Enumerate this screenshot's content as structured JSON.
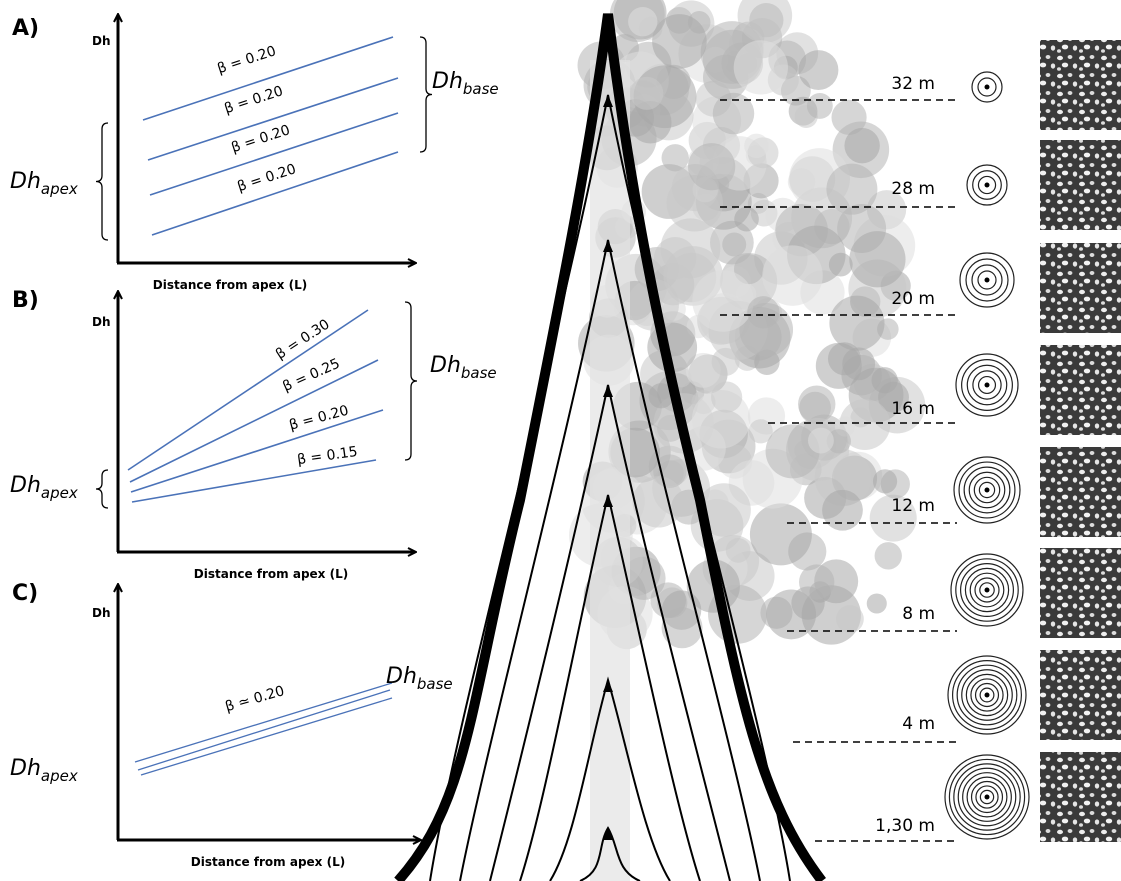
{
  "panels": [
    {
      "label": "A)",
      "y_axis_label": "Dh",
      "x_axis_label": "Distance from apex (L)",
      "line_labels": [
        "β = 0.20",
        "β = 0.20",
        "β = 0.20",
        "β = 0.20"
      ],
      "dh_base": {
        "main": "Dh",
        "sub": "base"
      },
      "dh_apex": {
        "main": "Dh",
        "sub": "apex"
      }
    },
    {
      "label": "B)",
      "y_axis_label": "Dh",
      "x_axis_label": "Distance from apex (L)",
      "line_labels": [
        "β = 0.30",
        "β = 0.25",
        "β = 0.20",
        "β = 0.15"
      ],
      "dh_base": {
        "main": "Dh",
        "sub": "base"
      },
      "dh_apex": {
        "main": "Dh",
        "sub": "apex"
      }
    },
    {
      "label": "C)",
      "y_axis_label": "Dh",
      "x_axis_label": "Distance from apex (L)",
      "line_labels": [
        "β ≃ 0.20"
      ],
      "dh_base": {
        "main": "Dh",
        "sub": "base"
      },
      "dh_apex": {
        "main": "Dh",
        "sub": "apex"
      }
    }
  ],
  "heights": [
    "32 m",
    "28 m",
    "20 m",
    "16 m",
    "12 m",
    "8 m",
    "4 m",
    "1,30 m"
  ]
}
